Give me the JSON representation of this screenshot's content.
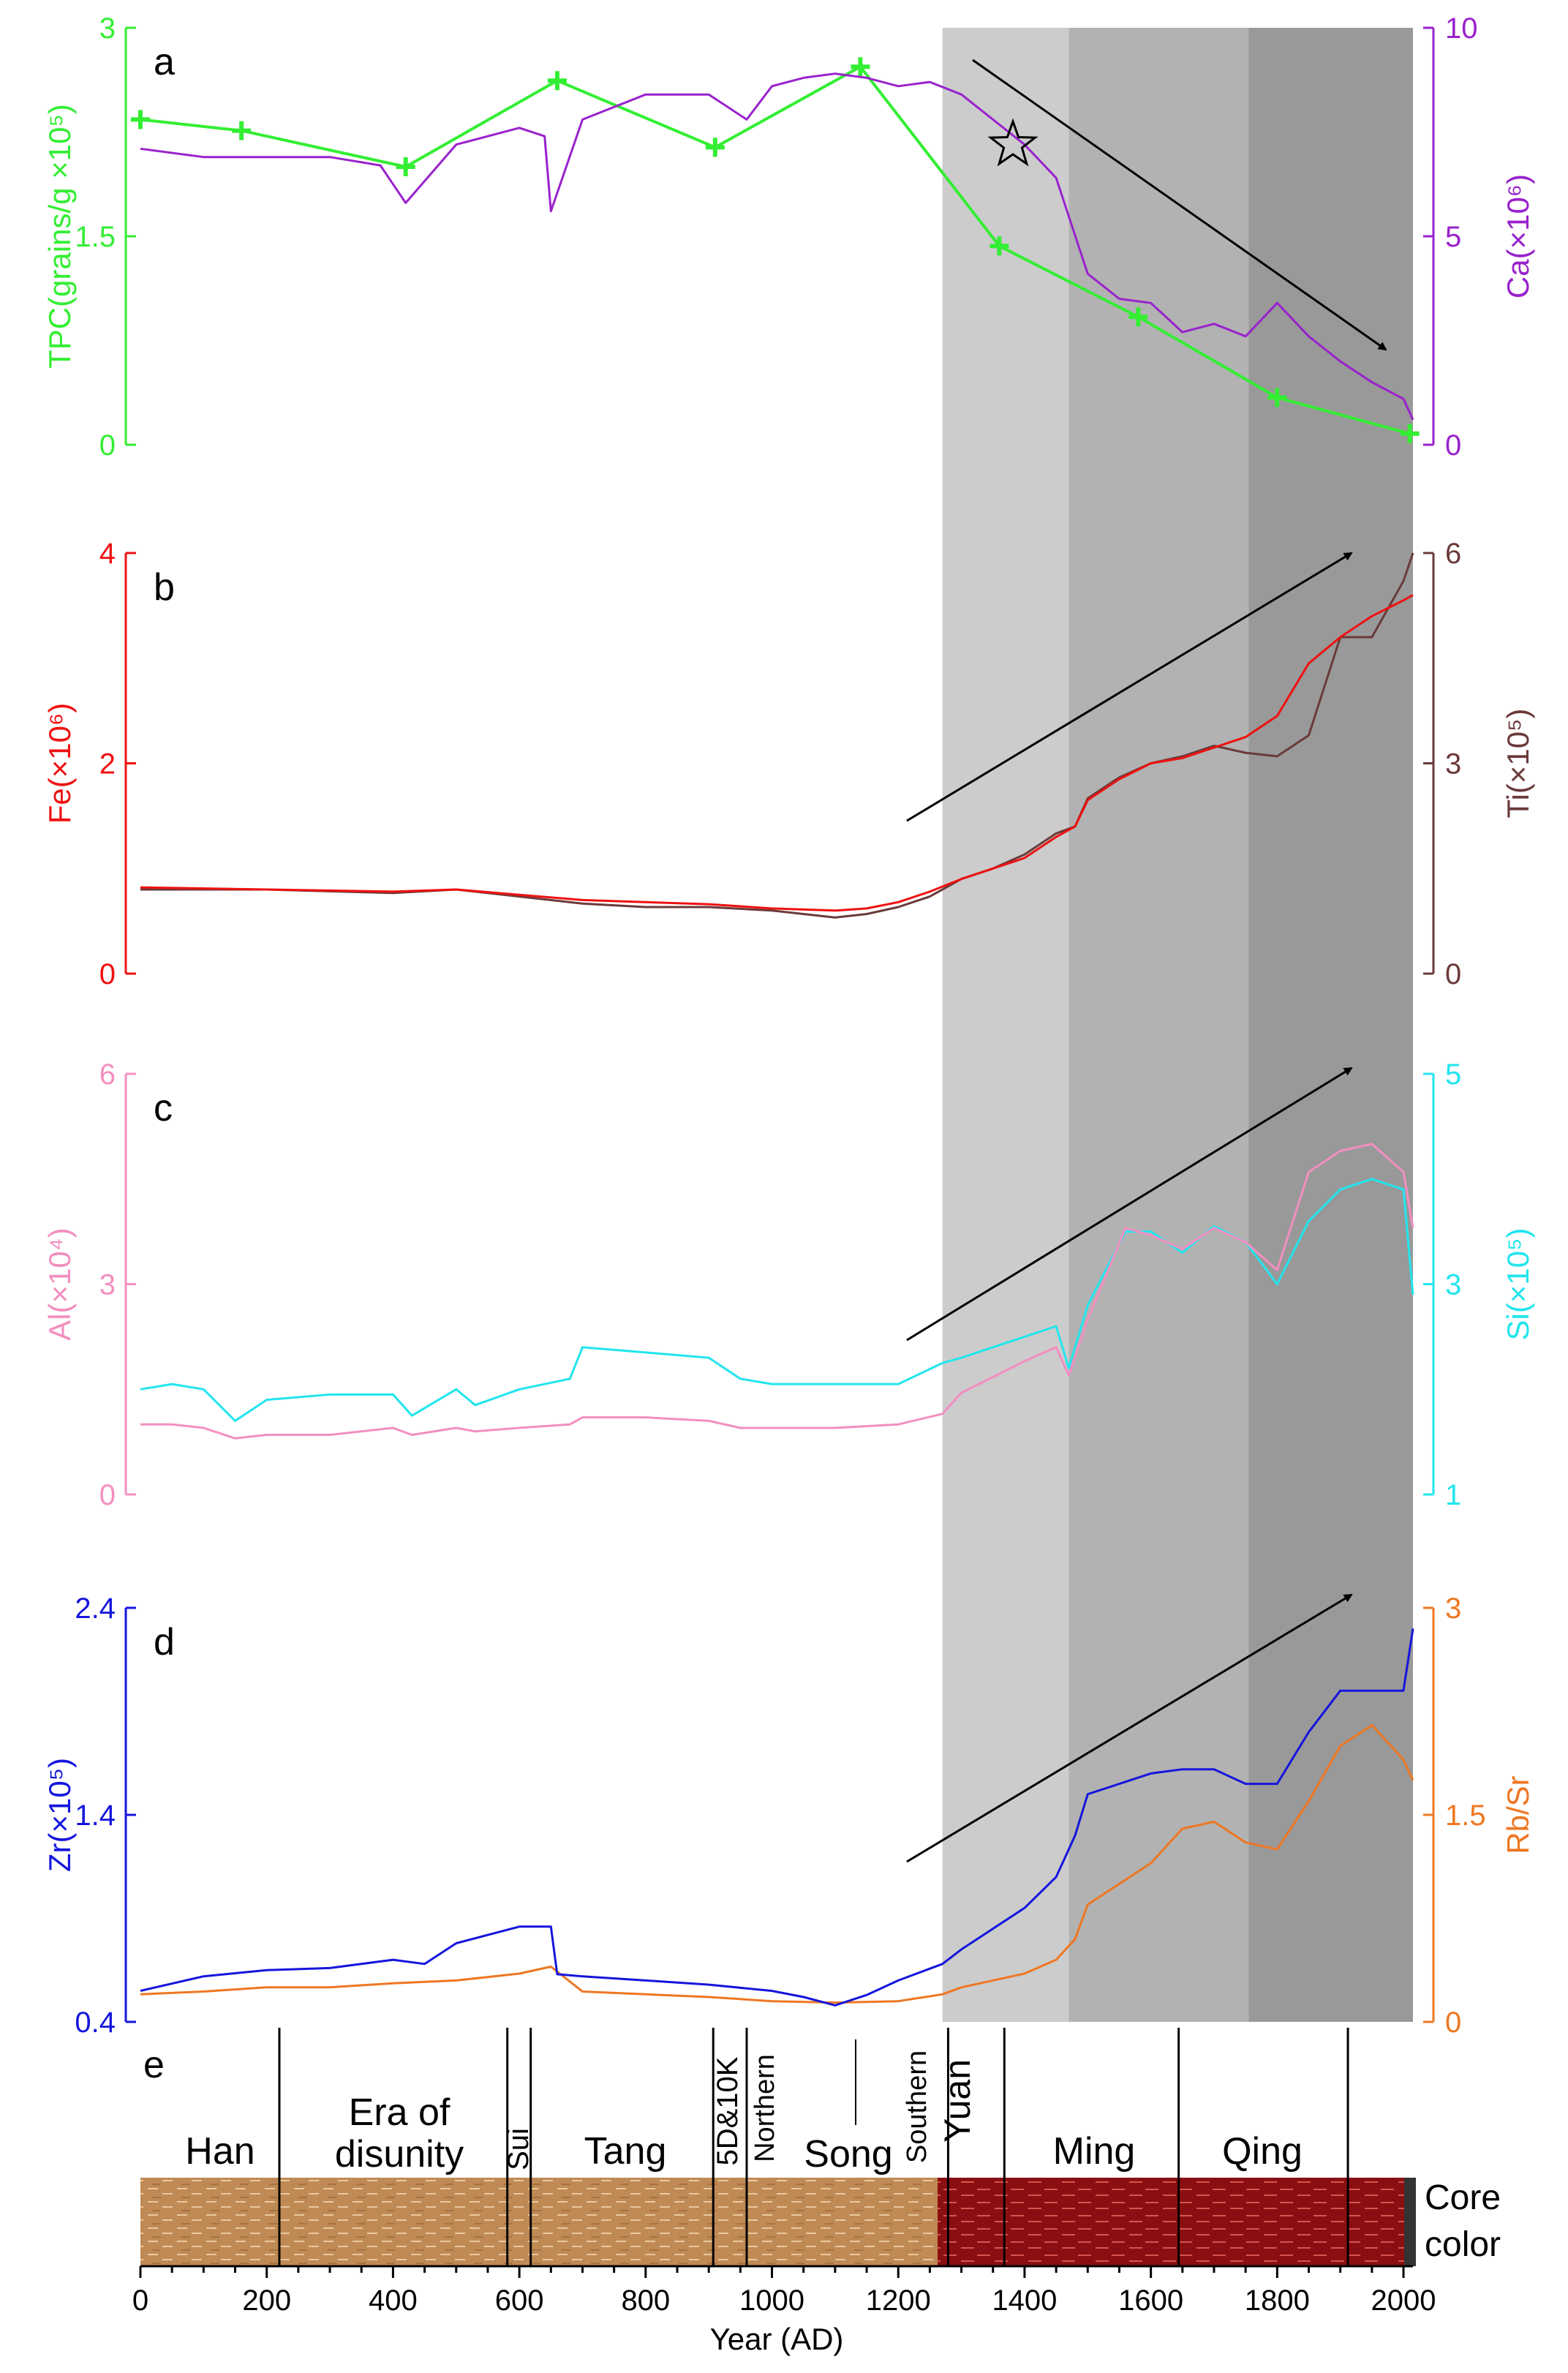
{
  "colors": {
    "tpc": "#33ee33",
    "ca": "#9922cc",
    "fe": "#ee1111",
    "ti": "#6b3a3a",
    "al": "#f28fc0",
    "si": "#22e5ee",
    "zr": "#1515dd",
    "rbsr": "#ee7722",
    "shade1": "#cccccc",
    "shade2": "#b2b2b2",
    "shade3": "#999999",
    "core_brown": "#c08a55",
    "core_red": "#8a0f12",
    "core_dark": "#333333"
  },
  "chart_data": [
    {
      "id": "a",
      "type": "line",
      "panel_label": "a",
      "left_axis": {
        "label": "TPC(grains/g ×10⁵)",
        "range": [
          0,
          3
        ],
        "ticks": [
          "0",
          "1.5",
          "3"
        ],
        "color": "#33ee33"
      },
      "right_axis": {
        "label": "Ca(×10⁶)",
        "range": [
          0,
          10
        ],
        "ticks": [
          "0",
          "5",
          "10"
        ],
        "color": "#9922cc"
      },
      "series": [
        {
          "key": "tpc",
          "axis": "left",
          "markers": "plus",
          "x": [
            0,
            160,
            420,
            660,
            910,
            1140,
            1360,
            1580,
            1800,
            2010
          ],
          "y": [
            2.34,
            2.26,
            2.0,
            2.62,
            2.14,
            2.72,
            1.43,
            0.92,
            0.34,
            0.08
          ]
        },
        {
          "key": "ca",
          "axis": "right",
          "x": [
            0,
            100,
            200,
            300,
            380,
            420,
            500,
            600,
            640,
            650,
            700,
            800,
            900,
            960,
            1000,
            1050,
            1100,
            1150,
            1200,
            1250,
            1300,
            1350,
            1400,
            1450,
            1500,
            1550,
            1600,
            1650,
            1700,
            1750,
            1800,
            1850,
            1900,
            1950,
            2000,
            2015
          ],
          "y": [
            7.1,
            6.9,
            6.9,
            6.9,
            6.7,
            5.8,
            7.2,
            7.6,
            7.4,
            5.6,
            7.8,
            8.4,
            8.4,
            7.8,
            8.6,
            8.8,
            8.9,
            8.8,
            8.6,
            8.7,
            8.4,
            7.8,
            7.2,
            6.4,
            4.1,
            3.5,
            3.4,
            2.7,
            2.9,
            2.6,
            3.4,
            2.6,
            2.0,
            1.5,
            1.1,
            0.6
          ]
        }
      ],
      "annotations": [
        "star",
        "trend arrow down"
      ]
    },
    {
      "id": "b",
      "type": "line",
      "panel_label": "b",
      "left_axis": {
        "label": "Fe(×10⁶)",
        "range": [
          0,
          4
        ],
        "ticks": [
          "0",
          "2",
          "4"
        ],
        "color": "#ee1111"
      },
      "right_axis": {
        "label": "Ti(×10⁵)",
        "range": [
          0,
          6
        ],
        "ticks": [
          "0",
          "3",
          "6"
        ],
        "color": "#6b3a3a"
      },
      "series": [
        {
          "key": "ti",
          "axis": "right",
          "x": [
            0,
            200,
            400,
            500,
            600,
            700,
            800,
            900,
            1000,
            1100,
            1150,
            1200,
            1250,
            1300,
            1350,
            1400,
            1450,
            1480,
            1500,
            1550,
            1600,
            1650,
            1700,
            1750,
            1800,
            1850,
            1900,
            1950,
            2000,
            2015
          ],
          "y": [
            1.2,
            1.2,
            1.15,
            1.2,
            1.1,
            1.0,
            0.95,
            0.95,
            0.9,
            0.8,
            0.85,
            0.95,
            1.1,
            1.35,
            1.5,
            1.7,
            2.0,
            2.1,
            2.5,
            2.8,
            3.0,
            3.1,
            3.25,
            3.15,
            3.1,
            3.4,
            4.8,
            4.8,
            5.6,
            6.0
          ]
        },
        {
          "key": "fe",
          "axis": "left",
          "x": [
            0,
            200,
            400,
            500,
            600,
            700,
            800,
            900,
            1000,
            1100,
            1150,
            1200,
            1250,
            1300,
            1350,
            1400,
            1450,
            1480,
            1500,
            1550,
            1600,
            1650,
            1700,
            1750,
            1800,
            1850,
            1900,
            1950,
            2000,
            2015
          ],
          "y": [
            0.82,
            0.8,
            0.78,
            0.8,
            0.75,
            0.7,
            0.68,
            0.66,
            0.62,
            0.6,
            0.62,
            0.68,
            0.78,
            0.9,
            1.0,
            1.1,
            1.3,
            1.4,
            1.65,
            1.85,
            2.0,
            2.05,
            2.15,
            2.25,
            2.45,
            2.95,
            3.2,
            3.4,
            3.55,
            3.6
          ]
        }
      ],
      "annotations": [
        "trend arrow up"
      ]
    },
    {
      "id": "c",
      "type": "line",
      "panel_label": "c",
      "left_axis": {
        "label": "Al(×10⁴)",
        "range": [
          0,
          6
        ],
        "ticks": [
          "0",
          "3",
          "6"
        ],
        "color": "#f28fc0"
      },
      "right_axis": {
        "label": "Si(×10⁵)",
        "range": [
          1,
          5
        ],
        "ticks": [
          "1",
          "3",
          "5"
        ],
        "color": "#22e5ee"
      },
      "series": [
        {
          "key": "si",
          "axis": "right",
          "x": [
            0,
            50,
            100,
            150,
            200,
            300,
            400,
            430,
            500,
            530,
            600,
            680,
            700,
            800,
            900,
            950,
            1000,
            1100,
            1200,
            1270,
            1300,
            1400,
            1450,
            1470,
            1500,
            1560,
            1600,
            1650,
            1700,
            1750,
            1800,
            1850,
            1900,
            1950,
            2000,
            2015
          ],
          "y": [
            2.0,
            2.05,
            2.0,
            1.7,
            1.9,
            1.95,
            1.95,
            1.75,
            2.0,
            1.85,
            2.0,
            2.1,
            2.4,
            2.35,
            2.3,
            2.1,
            2.05,
            2.05,
            2.05,
            2.25,
            2.3,
            2.5,
            2.6,
            2.2,
            2.8,
            3.5,
            3.5,
            3.3,
            3.55,
            3.4,
            3.0,
            3.6,
            3.9,
            4.0,
            3.9,
            2.9
          ]
        },
        {
          "key": "al",
          "axis": "left",
          "x": [
            0,
            50,
            100,
            150,
            200,
            300,
            400,
            430,
            500,
            530,
            600,
            680,
            700,
            800,
            900,
            950,
            1000,
            1100,
            1200,
            1270,
            1300,
            1400,
            1450,
            1470,
            1500,
            1560,
            1600,
            1650,
            1700,
            1750,
            1800,
            1850,
            1900,
            1950,
            2000,
            2015
          ],
          "y": [
            1.0,
            1.0,
            0.95,
            0.8,
            0.85,
            0.85,
            0.95,
            0.85,
            0.95,
            0.9,
            0.95,
            1.0,
            1.1,
            1.1,
            1.05,
            0.95,
            0.95,
            0.95,
            1.0,
            1.15,
            1.45,
            1.9,
            2.1,
            1.7,
            2.5,
            3.8,
            3.7,
            3.5,
            3.8,
            3.6,
            3.2,
            4.6,
            4.9,
            5.0,
            4.6,
            3.8
          ]
        }
      ],
      "annotations": [
        "trend arrow up"
      ]
    },
    {
      "id": "d",
      "type": "line",
      "panel_label": "d",
      "left_axis": {
        "label": "Zr(×10⁵)",
        "range": [
          0.4,
          2.4
        ],
        "ticks": [
          "0.4",
          "1.4",
          "2.4"
        ],
        "color": "#1515dd"
      },
      "right_axis": {
        "label": "Rb/Sr",
        "range": [
          0,
          3
        ],
        "ticks": [
          "0",
          "1.5",
          "3"
        ],
        "color": "#ee7722"
      },
      "series": [
        {
          "key": "rbsr",
          "axis": "right",
          "x": [
            0,
            100,
            200,
            300,
            400,
            500,
            600,
            650,
            700,
            800,
            900,
            1000,
            1100,
            1200,
            1270,
            1300,
            1400,
            1450,
            1480,
            1500,
            1600,
            1650,
            1700,
            1750,
            1800,
            1850,
            1900,
            1950,
            2000,
            2015
          ],
          "y": [
            0.2,
            0.22,
            0.25,
            0.25,
            0.28,
            0.3,
            0.35,
            0.4,
            0.22,
            0.2,
            0.18,
            0.15,
            0.14,
            0.15,
            0.2,
            0.25,
            0.35,
            0.45,
            0.6,
            0.85,
            1.15,
            1.4,
            1.45,
            1.3,
            1.25,
            1.6,
            2.0,
            2.15,
            1.9,
            1.75
          ]
        },
        {
          "key": "zr",
          "axis": "left",
          "x": [
            0,
            100,
            200,
            300,
            400,
            450,
            500,
            600,
            650,
            660,
            700,
            800,
            900,
            1000,
            1050,
            1100,
            1150,
            1200,
            1270,
            1300,
            1400,
            1450,
            1480,
            1500,
            1550,
            1600,
            1650,
            1700,
            1750,
            1800,
            1850,
            1900,
            1950,
            2000,
            2015
          ],
          "y": [
            0.55,
            0.62,
            0.65,
            0.66,
            0.7,
            0.68,
            0.78,
            0.86,
            0.86,
            0.63,
            0.62,
            0.6,
            0.58,
            0.55,
            0.52,
            0.48,
            0.53,
            0.6,
            0.68,
            0.75,
            0.95,
            1.1,
            1.3,
            1.5,
            1.55,
            1.6,
            1.62,
            1.62,
            1.55,
            1.55,
            1.8,
            2.0,
            2.0,
            2.0,
            2.3
          ]
        }
      ],
      "annotations": [
        "trend arrow up"
      ]
    }
  ],
  "shading": [
    {
      "from": 1270,
      "to": 1470,
      "color": "#cccccc"
    },
    {
      "from": 1470,
      "to": 1755,
      "color": "#b2b2b2"
    },
    {
      "from": 1755,
      "to": 2015,
      "color": "#999999"
    }
  ],
  "x_axis": {
    "label": "Year (AD)",
    "range": [
      0,
      2015
    ],
    "ticks": [
      "0",
      "200",
      "400",
      "600",
      "800",
      "1000",
      "1200",
      "1400",
      "1600",
      "1800",
      "2000"
    ]
  },
  "dynasty_panel": {
    "panel_label": "e",
    "boundaries": [
      220,
      581,
      618,
      907,
      960,
      1279,
      1368,
      1644,
      1912
    ],
    "labels": {
      "han": "Han",
      "disunity_1": "Era of",
      "disunity_2": "disunity",
      "sui": "Sui",
      "tang": "Tang",
      "five_dynasties": "5D&10K",
      "northern": "Northern",
      "song": "Song",
      "southern": "Southern",
      "yuan": "Yuan",
      "ming": "Ming",
      "qing": "Qing"
    },
    "core_color_1": "Core",
    "core_color_2": "color"
  }
}
